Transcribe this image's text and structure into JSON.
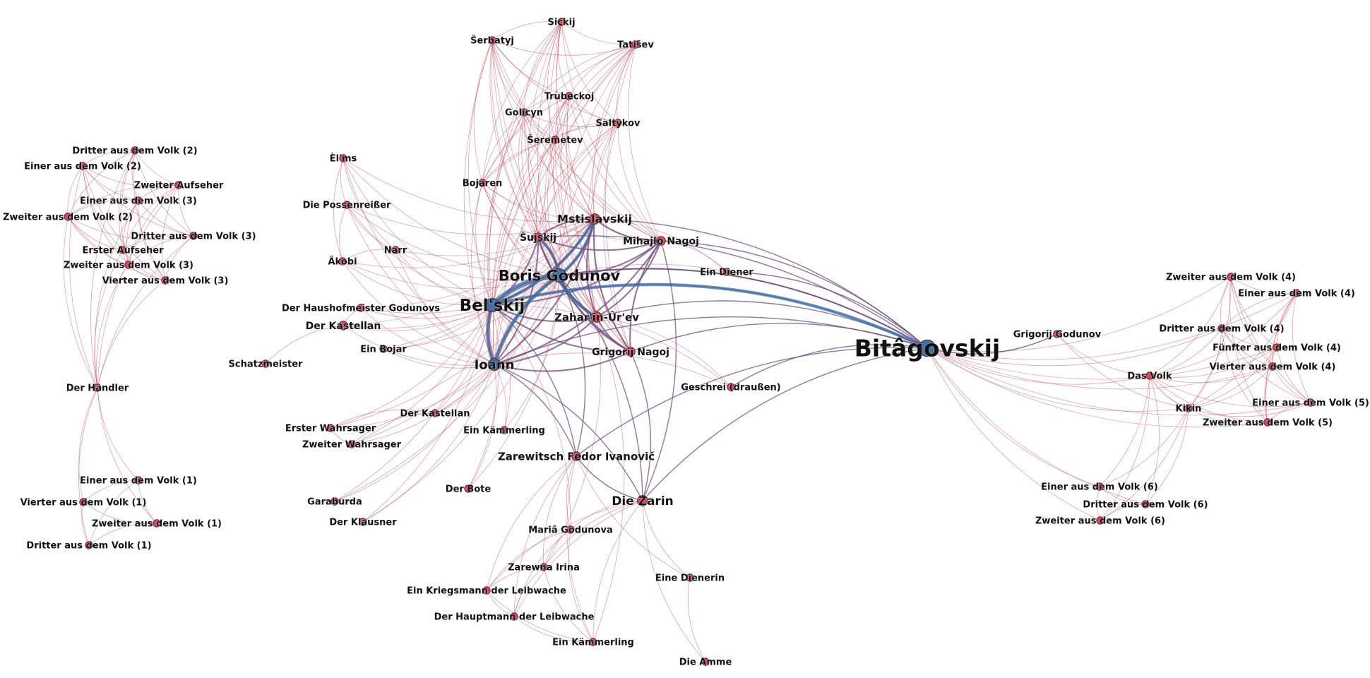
{
  "diagram": {
    "type": "network",
    "colors": {
      "edge_weak": "#b2455c",
      "edge_mid": "#6b4a7a",
      "edge_strong": "#3b6ea8",
      "node_small": "#e0455a",
      "node_large": "#3f6fa5"
    },
    "nodes": [
      {
        "id": "sickij",
        "label": "Sickij",
        "size": 1
      },
      {
        "id": "serbatyj",
        "label": "Šerbatyj",
        "size": 1
      },
      {
        "id": "tatisev",
        "label": "Tatišev",
        "size": 1
      },
      {
        "id": "trubeckoj",
        "label": "Trubeckoj",
        "size": 1
      },
      {
        "id": "golicyn",
        "label": "Golicyn",
        "size": 1
      },
      {
        "id": "saltykov",
        "label": "Saltykov",
        "size": 1
      },
      {
        "id": "seremetev",
        "label": "Šeremetev",
        "size": 1
      },
      {
        "id": "bojaren",
        "label": "Bojaren",
        "size": 1
      },
      {
        "id": "mstislavskij",
        "label": "Mstislavskij",
        "size": 2
      },
      {
        "id": "mihajlo",
        "label": "Mihajlo Nagoj",
        "size": 1.5
      },
      {
        "id": "sujskij",
        "label": "Šujskij",
        "size": 1.5
      },
      {
        "id": "boris",
        "label": "Boris Godunov",
        "size": 3
      },
      {
        "id": "belskij",
        "label": "Bel'skij",
        "size": 3
      },
      {
        "id": "zaharin",
        "label": "Zahar'in-Ûr'ev",
        "size": 2
      },
      {
        "id": "grigorij_nagoj",
        "label": "Grigorij Nagoj",
        "size": 1.5
      },
      {
        "id": "ioann",
        "label": "Ioann",
        "size": 2.5
      },
      {
        "id": "diener",
        "label": "Ein Diener",
        "size": 1
      },
      {
        "id": "elms",
        "label": "Èl'ms",
        "size": 1
      },
      {
        "id": "possenreisser",
        "label": "Die Possenreißer",
        "size": 1
      },
      {
        "id": "narr",
        "label": "Narr",
        "size": 1
      },
      {
        "id": "akobi",
        "label": "Âkobi",
        "size": 1
      },
      {
        "id": "haushofmeister",
        "label": "Der Haushofmeister Godunovs",
        "size": 1
      },
      {
        "id": "kastellan1",
        "label": "Der Kastellan",
        "size": 1.5
      },
      {
        "id": "schatzmeister",
        "label": "Schatzmeister",
        "size": 1
      },
      {
        "id": "bojar",
        "label": "Ein Bojar",
        "size": 1
      },
      {
        "id": "geschrei",
        "label": "Geschrei (draußen)",
        "size": 1
      },
      {
        "id": "kastellan2",
        "label": "Der Kastellan",
        "size": 1
      },
      {
        "id": "wahrsager1",
        "label": "Erster Wahrsager",
        "size": 1
      },
      {
        "id": "wahrsager2",
        "label": "Zweiter Wahrsager",
        "size": 1
      },
      {
        "id": "kaemmerling1",
        "label": "Ein Kämmerling",
        "size": 1
      },
      {
        "id": "fedor",
        "label": "Zarewitsch Fedor Ivanovič",
        "size": 1.5
      },
      {
        "id": "bote",
        "label": "Der Bote",
        "size": 1
      },
      {
        "id": "garaburda",
        "label": "Garaburda",
        "size": 1
      },
      {
        "id": "klausner",
        "label": "Der Klausner",
        "size": 1
      },
      {
        "id": "zarin",
        "label": "Die Zarin",
        "size": 2
      },
      {
        "id": "maria",
        "label": "Mariâ Godunova",
        "size": 1
      },
      {
        "id": "irina",
        "label": "Zarewna Irina",
        "size": 1
      },
      {
        "id": "kriegsmann",
        "label": "Ein Kriegsmann der Leibwache",
        "size": 1
      },
      {
        "id": "hauptmann",
        "label": "Der Hauptmann der Leibwache",
        "size": 1
      },
      {
        "id": "kaemmerling2",
        "label": "Ein Kämmerling",
        "size": 1
      },
      {
        "id": "dienerin",
        "label": "Eine Dienerin",
        "size": 1
      },
      {
        "id": "amme",
        "label": "Die Amme",
        "size": 1
      },
      {
        "id": "bitagovskij",
        "label": "Bitâgovskij",
        "size": 4
      },
      {
        "id": "grigorij_godunov",
        "label": "Grigorij Godunov",
        "size": 1
      },
      {
        "id": "volk",
        "label": "Das Volk",
        "size": 1
      },
      {
        "id": "kikin",
        "label": "Kikin",
        "size": 1
      },
      {
        "id": "v4_2",
        "label": "Zweiter aus dem Volk (4)",
        "size": 1
      },
      {
        "id": "v4_1",
        "label": "Einer aus dem Volk (4)",
        "size": 1
      },
      {
        "id": "v4_3",
        "label": "Dritter aus dem Volk (4)",
        "size": 1
      },
      {
        "id": "v4_5",
        "label": "Fünfter aus dem Volk (4)",
        "size": 1
      },
      {
        "id": "v4_4",
        "label": "Vierter aus dem Volk (4)",
        "size": 1
      },
      {
        "id": "v5_1",
        "label": "Einer aus dem Volk (5)",
        "size": 1
      },
      {
        "id": "v5_2",
        "label": "Zweiter aus dem Volk (5)",
        "size": 1
      },
      {
        "id": "v6_1",
        "label": "Einer aus dem Volk (6)",
        "size": 1
      },
      {
        "id": "v6_3",
        "label": "Dritter aus dem Volk (6)",
        "size": 1
      },
      {
        "id": "v6_2",
        "label": "Zweiter aus dem Volk (6)",
        "size": 1
      },
      {
        "id": "v2_3",
        "label": "Dritter aus dem Volk (2)",
        "size": 1
      },
      {
        "id": "v2_1",
        "label": "Einer aus dem Volk (2)",
        "size": 1
      },
      {
        "id": "aufseher2",
        "label": "Zweiter Aufseher",
        "size": 1
      },
      {
        "id": "v3_1",
        "label": "Einer aus dem Volk (3)",
        "size": 1
      },
      {
        "id": "v2_2",
        "label": "Zweiter aus dem Volk (2)",
        "size": 1
      },
      {
        "id": "v3_3",
        "label": "Dritter aus dem Volk (3)",
        "size": 1
      },
      {
        "id": "aufseher1",
        "label": "Erster Aufseher",
        "size": 1
      },
      {
        "id": "v3_2",
        "label": "Zweiter aus dem Volk (3)",
        "size": 1
      },
      {
        "id": "v3_4",
        "label": "Vierter aus dem Volk (3)",
        "size": 1
      },
      {
        "id": "haendler",
        "label": "Der Händler",
        "size": 1
      },
      {
        "id": "v1_1",
        "label": "Einer aus dem Volk (1)",
        "size": 1
      },
      {
        "id": "v1_4",
        "label": "Vierter aus dem Volk (1)",
        "size": 1
      },
      {
        "id": "v1_2",
        "label": "Zweiter aus dem Volk (1)",
        "size": 1
      },
      {
        "id": "v1_3",
        "label": "Dritter aus dem Volk (1)",
        "size": 1
      }
    ]
  }
}
